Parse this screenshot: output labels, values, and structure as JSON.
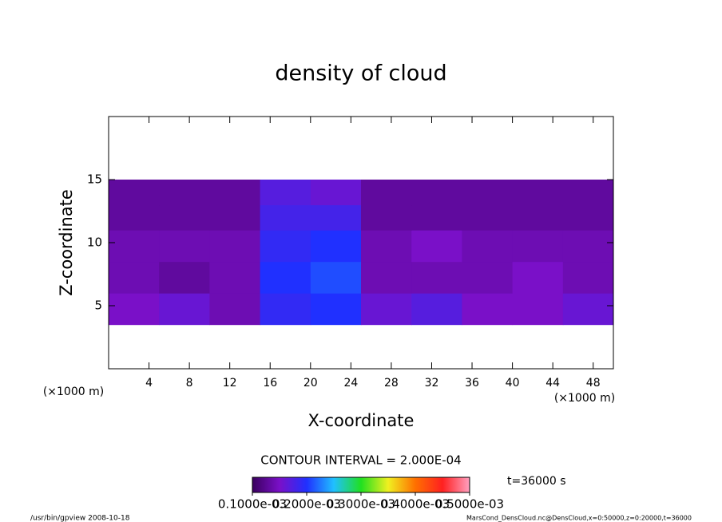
{
  "chart_data": {
    "type": "contour",
    "title": "density of cloud",
    "x_label": "X-coordinate",
    "y_label": "Z-coordinate",
    "x_unit": "(×1000 m)",
    "y_unit": "(×1000 m)",
    "xlim": [
      0,
      50
    ],
    "xticks": [
      4,
      8,
      12,
      16,
      20,
      24,
      28,
      32,
      36,
      40,
      44,
      48
    ],
    "ylim": [
      0,
      20
    ],
    "yticks": [
      5,
      10,
      15
    ],
    "x_edges": [
      0,
      5,
      10,
      15,
      20,
      25,
      30,
      35,
      40,
      45,
      50
    ],
    "z_edges": [
      3.5,
      6,
      8.5,
      11,
      13,
      15
    ],
    "z": [
      [
        0.00015,
        0.00016,
        0.00014,
        0.00019,
        0.0002,
        0.00016,
        0.00017,
        0.00015,
        0.00015,
        0.00016
      ],
      [
        0.00014,
        0.00013,
        0.00014,
        0.0002,
        0.00021,
        0.00014,
        0.00014,
        0.00014,
        0.00015,
        0.00014
      ],
      [
        0.00014,
        0.00014,
        0.00014,
        0.00019,
        0.0002,
        0.00014,
        0.00015,
        0.00014,
        0.00014,
        0.00014
      ],
      [
        0.00013,
        0.00013,
        0.00013,
        0.00018,
        0.00018,
        0.00013,
        0.00013,
        0.00013,
        0.00013,
        0.00013
      ],
      [
        0.00013,
        0.00013,
        0.00013,
        0.00017,
        0.00016,
        0.00013,
        0.00013,
        0.00013,
        0.00013,
        0.00013
      ]
    ],
    "colormap": [
      "#3a005e",
      "#7a10c8",
      "#2030ff",
      "#20c0ff",
      "#20e020",
      "#f0f020",
      "#ff7000",
      "#ff2020",
      "#ffa0c0"
    ],
    "clim": [
      0.0001,
      0.0005
    ],
    "cticks": [
      {
        "value": 0.0001,
        "label": "0.1000e-03"
      },
      {
        "value": 0.0002,
        "label": "0.2000e-03"
      },
      {
        "value": 0.0003,
        "label": "0.3000e-03"
      },
      {
        "value": 0.0004,
        "label": "0.4000e-03"
      },
      {
        "value": 0.0005,
        "label": "0.5000e-03"
      }
    ],
    "contour_interval": "CONTOUR INTERVAL = 2.000E-04",
    "time_label": "t=36000 s",
    "footer_left": "/usr/bin/gpview   2008-10-18",
    "footer_right": "MarsCond_DensCloud.nc@DensCloud,x=0:50000,z=0:20000,t=36000"
  }
}
